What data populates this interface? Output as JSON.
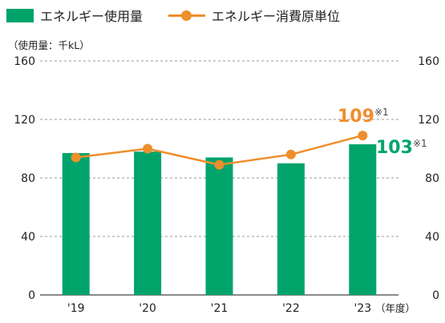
{
  "colors": {
    "bar": "#00a46b",
    "line": "#ef8e2c",
    "grid": "#9a9a9a",
    "axis": "#444444",
    "text": "#222222"
  },
  "legend": {
    "bar_label": "エネルギー使用量",
    "line_label": "エネルギー消費原単位"
  },
  "unit_label": "（使用量：千kL）",
  "xunit_label": "（年度）",
  "chart_data": {
    "type": "bar",
    "categories": [
      "'19",
      "'20",
      "'21",
      "'22",
      "'23"
    ],
    "series": [
      {
        "name": "エネルギー使用量",
        "type": "bar",
        "axis": "left",
        "values": [
          97,
          98,
          94,
          90,
          103
        ]
      },
      {
        "name": "エネルギー消費原単位",
        "type": "line",
        "axis": "right",
        "values": [
          94,
          100,
          89,
          96,
          109
        ]
      }
    ],
    "ylim": [
      0,
      160
    ],
    "yticks": [
      "0",
      "40",
      "80",
      "120",
      "160"
    ],
    "y2lim": [
      0,
      160
    ],
    "y2ticks": [
      "0",
      "40",
      "80",
      "120",
      "160"
    ],
    "grid": true,
    "legend_position": "top-left",
    "annotations": [
      {
        "series": "エネルギー消費原単位",
        "index": 4,
        "value": "109",
        "note": "※1"
      },
      {
        "series": "エネルギー使用量",
        "index": 4,
        "value": "103",
        "note": "※1"
      }
    ]
  }
}
